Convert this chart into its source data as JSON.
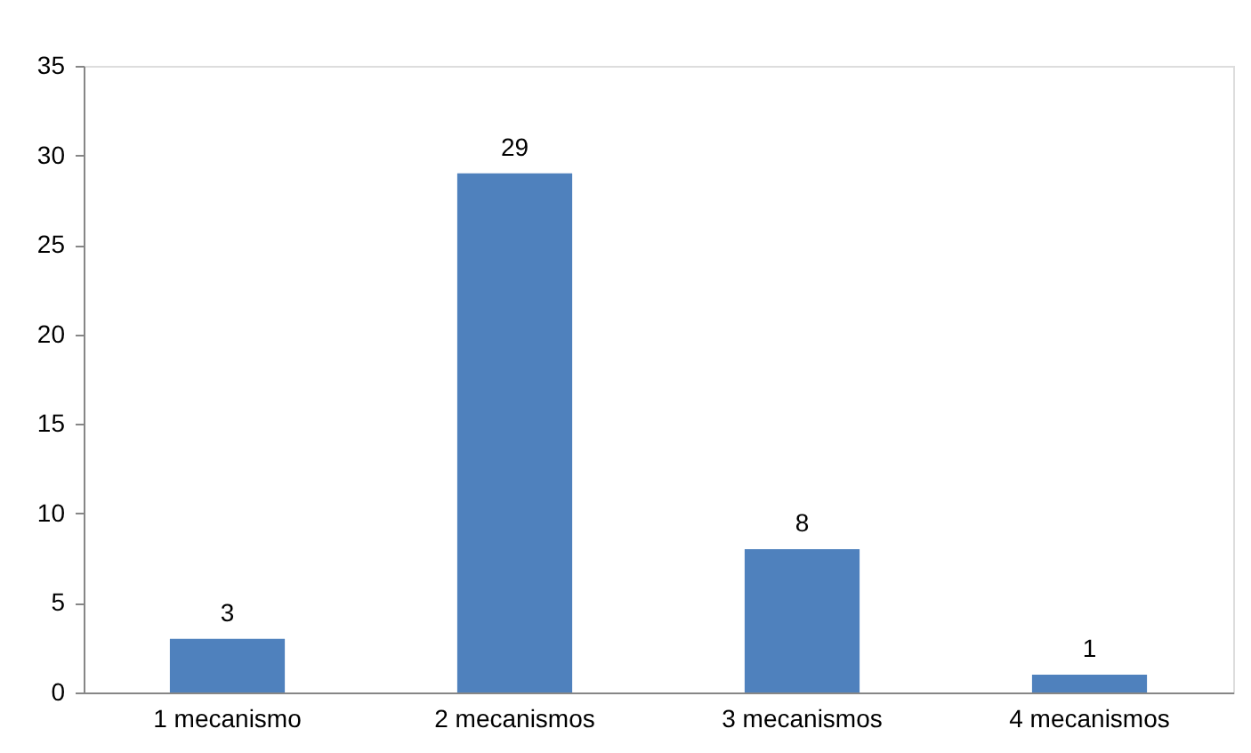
{
  "chart_data": {
    "type": "bar",
    "categories": [
      "1 mecanismo",
      "2 mecanismos",
      "3 mecanismos",
      "4 mecanismos"
    ],
    "values": [
      3,
      29,
      8,
      1
    ],
    "color": "#4f81bd",
    "ylim": [
      0,
      35
    ],
    "yticks": [
      0,
      5,
      10,
      15,
      20,
      25,
      30,
      35
    ],
    "grid": false,
    "data_labels": true
  }
}
